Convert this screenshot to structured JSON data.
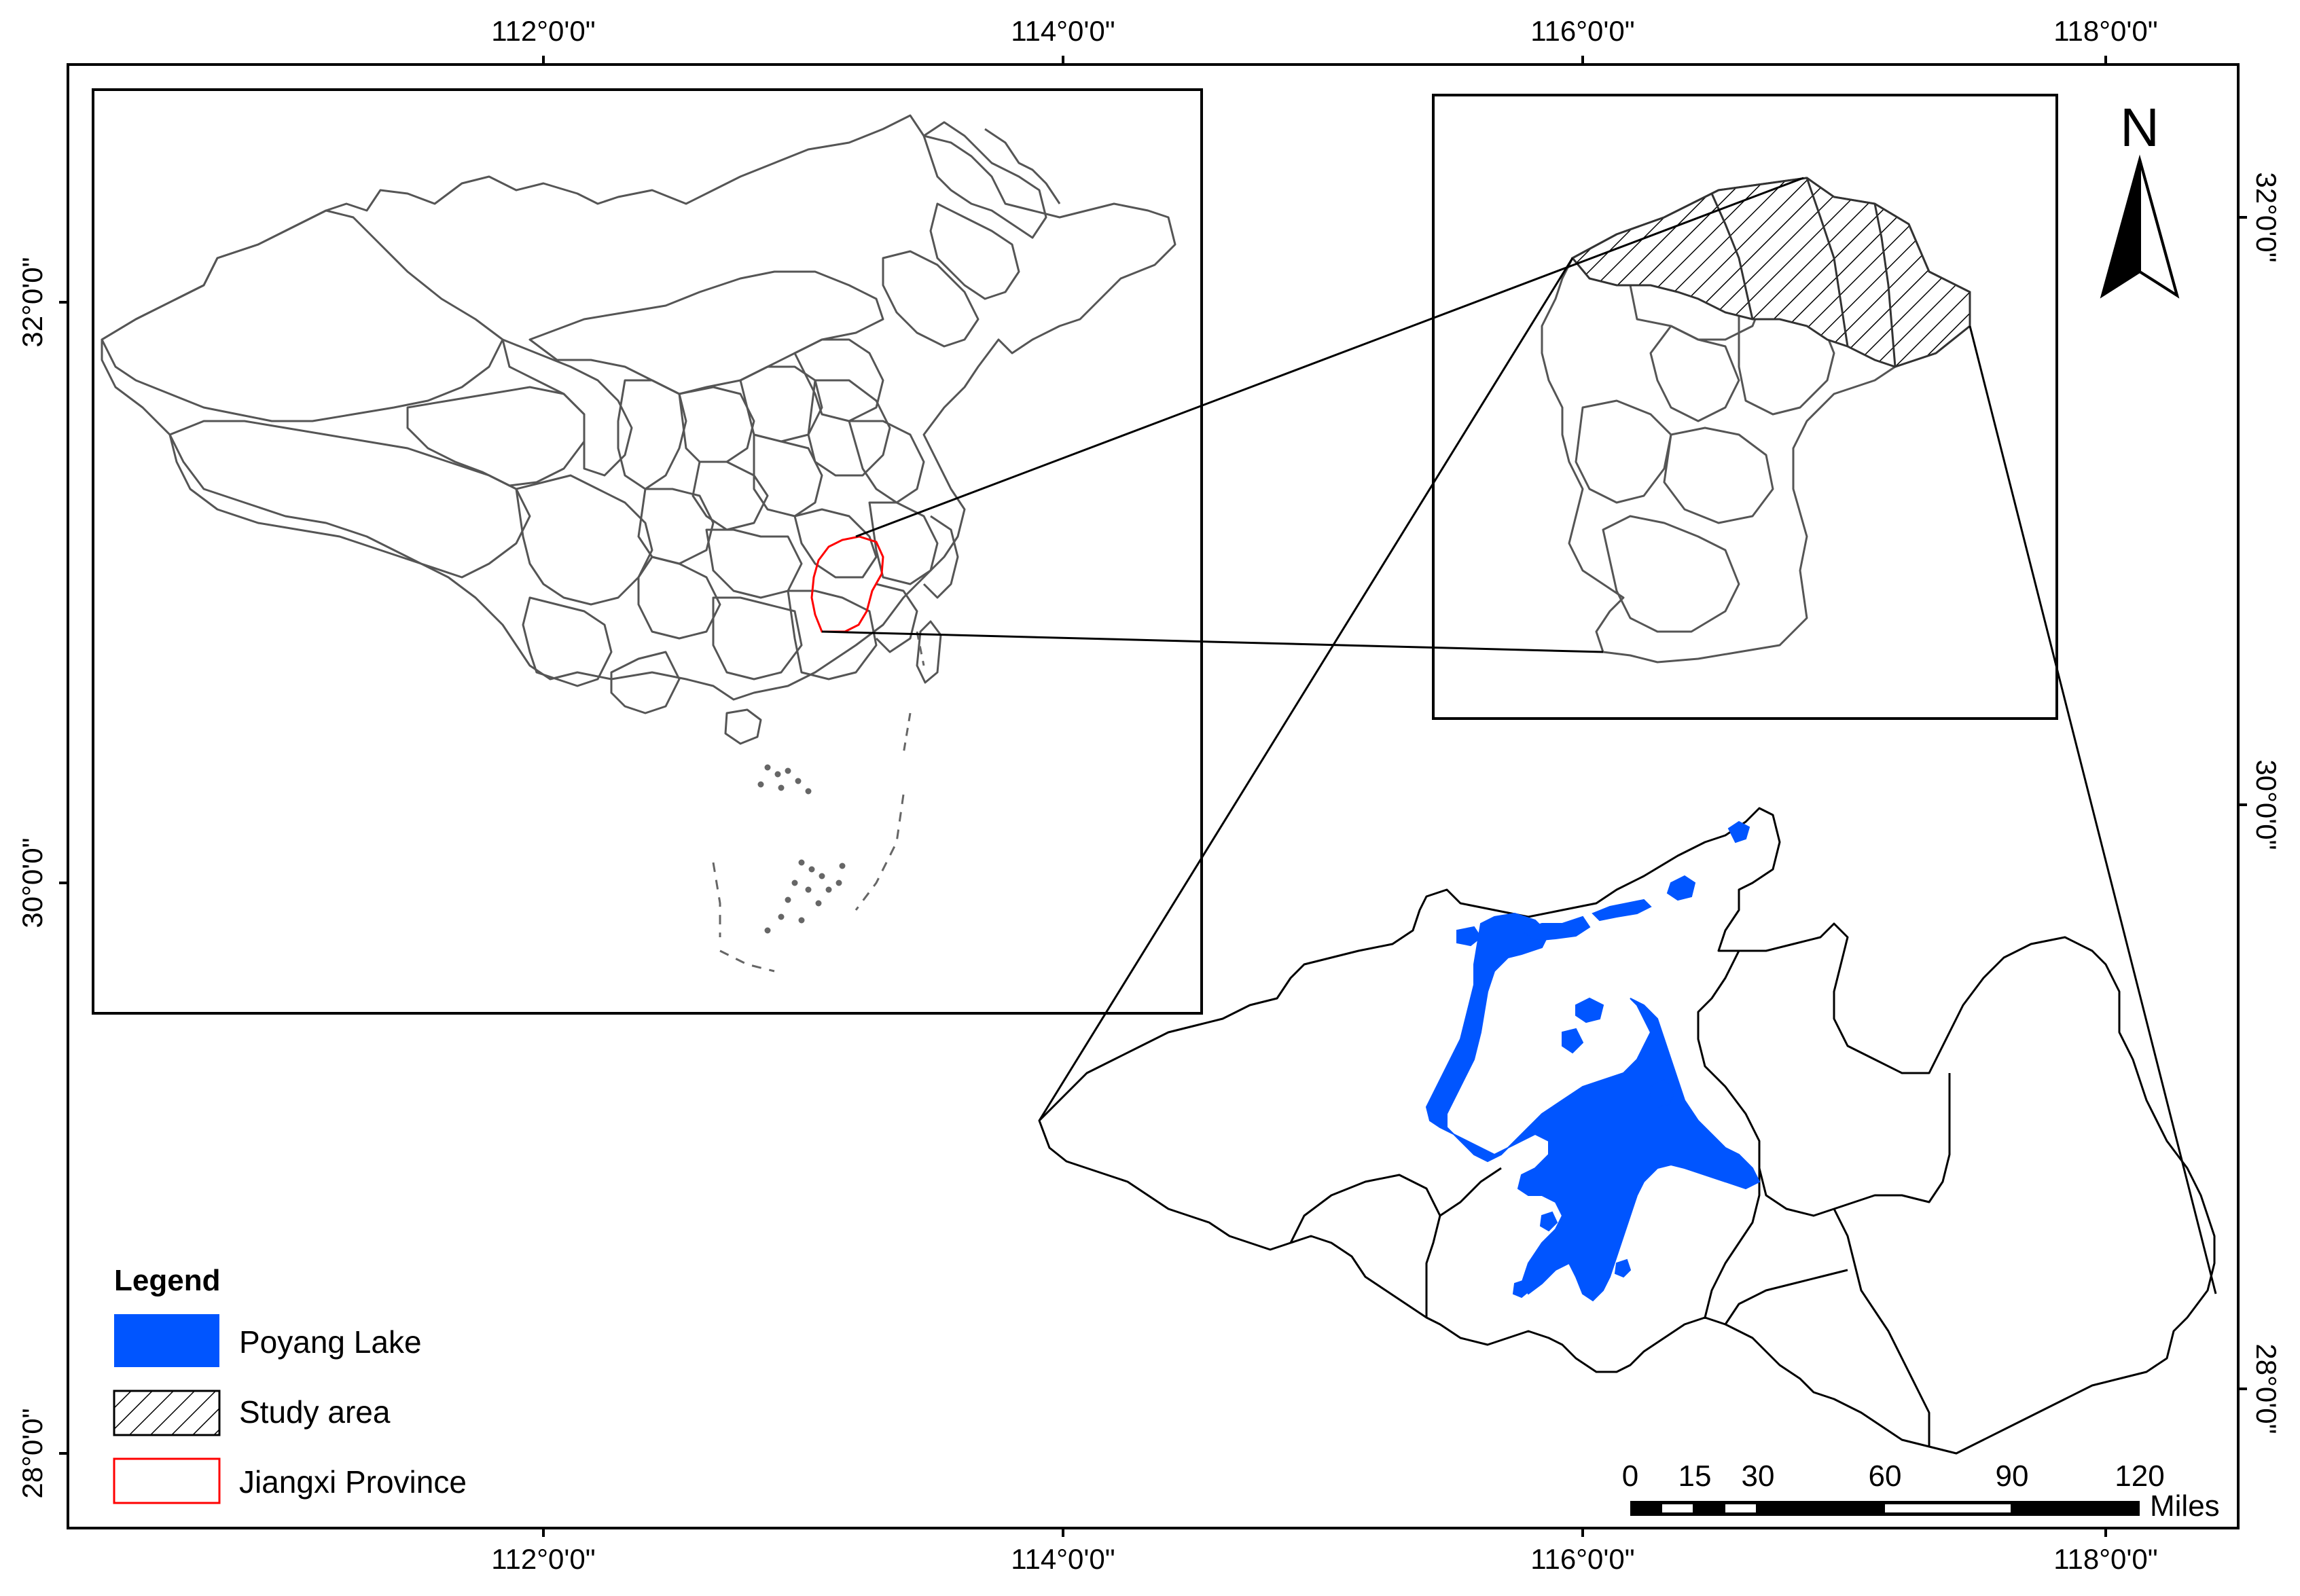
{
  "colors": {
    "frame": "#000000",
    "boundary": "#555555",
    "lake": "#0055ff",
    "jiangxi": "#ff0000",
    "background": "#ffffff"
  },
  "graticule": {
    "top": [
      "112°0'0\"",
      "114°0'0\"",
      "116°0'0\"",
      "118°0'0\""
    ],
    "bottom": [
      "112°0'0\"",
      "114°0'0\"",
      "116°0'0\"",
      "118°0'0\""
    ],
    "left": [
      "32°0'0\"",
      "30°0'0\"",
      "28°0'0\""
    ],
    "right": [
      "32°0'0\"",
      "30°0'0\"",
      "28°0'0\""
    ]
  },
  "north_arrow": {
    "label": "N",
    "icon": "north-arrow-icon"
  },
  "legend": {
    "title": "Legend",
    "items": [
      {
        "label": "Poyang Lake",
        "swatch": "solid-fill",
        "color": "#0055ff"
      },
      {
        "label": "Study area",
        "swatch": "hatch-fill",
        "color": "#000000"
      },
      {
        "label": "Jiangxi Province",
        "swatch": "outline",
        "color": "#ff0000"
      }
    ]
  },
  "scale_bar": {
    "ticks": [
      "0",
      "15",
      "30",
      "60",
      "90",
      "120"
    ],
    "unit": "Miles"
  },
  "panels": {
    "overview": "china-overview-map",
    "inset": "jiangxi-province-map",
    "detail": "study-area-detail-map"
  }
}
